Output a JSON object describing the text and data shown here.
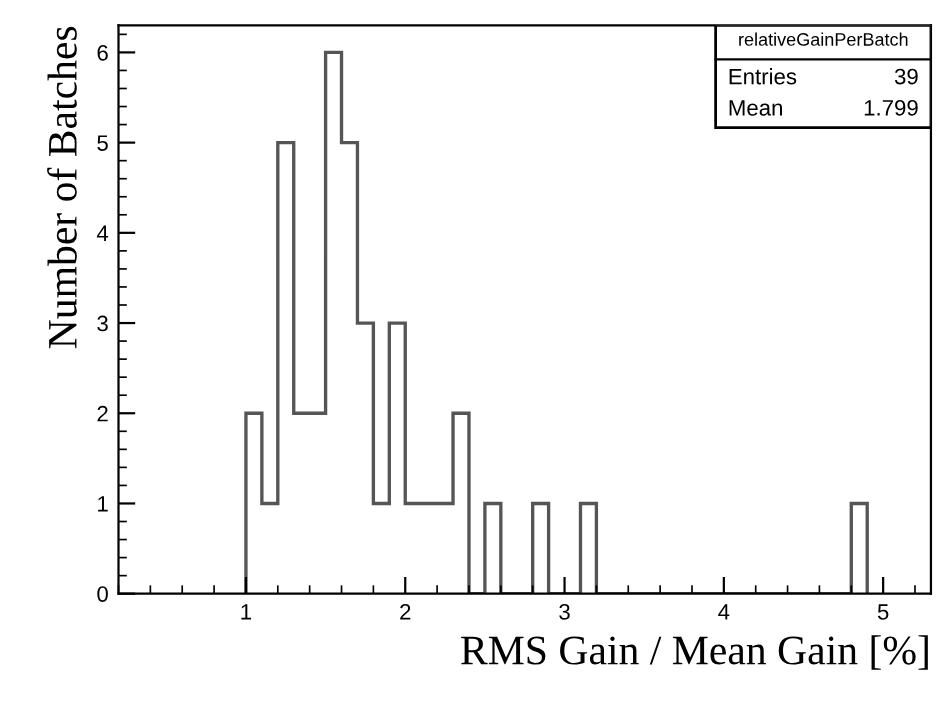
{
  "chart_data": {
    "type": "histogram",
    "xlabel": "RMS Gain / Mean Gain [%]",
    "ylabel": "Number of Batches",
    "bins": [
      1.0,
      1.1,
      1.2,
      1.3,
      1.4,
      1.5,
      1.6,
      1.7,
      1.8,
      1.9,
      2.0,
      2.1,
      2.2,
      2.3,
      2.4,
      2.5,
      2.6,
      2.7,
      2.8,
      2.9,
      3.0,
      3.1,
      3.2,
      3.3,
      3.4,
      3.5,
      3.6,
      3.7,
      3.8,
      3.9,
      4.0,
      4.1,
      4.2,
      4.3,
      4.4,
      4.5,
      4.6,
      4.7,
      4.8,
      4.9
    ],
    "values": [
      2,
      1,
      5,
      2,
      2,
      6,
      5,
      3,
      1,
      3,
      1,
      1,
      1,
      2,
      0,
      1,
      0,
      0,
      1,
      0,
      0,
      1,
      0,
      0,
      0,
      0,
      0,
      0,
      0,
      0,
      0,
      0,
      0,
      0,
      0,
      0,
      0,
      0,
      1
    ],
    "color": "#555555",
    "xlim": [
      0.2,
      5.3
    ],
    "xticks": [
      1,
      2,
      3,
      4,
      5
    ],
    "ylim": [
      0,
      6.3
    ],
    "yticks": [
      0,
      1,
      2,
      3,
      4,
      5,
      6
    ],
    "grid": false,
    "legend": false,
    "annotations": [
      "relativeGainPerBatch",
      "Entries",
      "39",
      "Mean",
      "1.799"
    ]
  }
}
